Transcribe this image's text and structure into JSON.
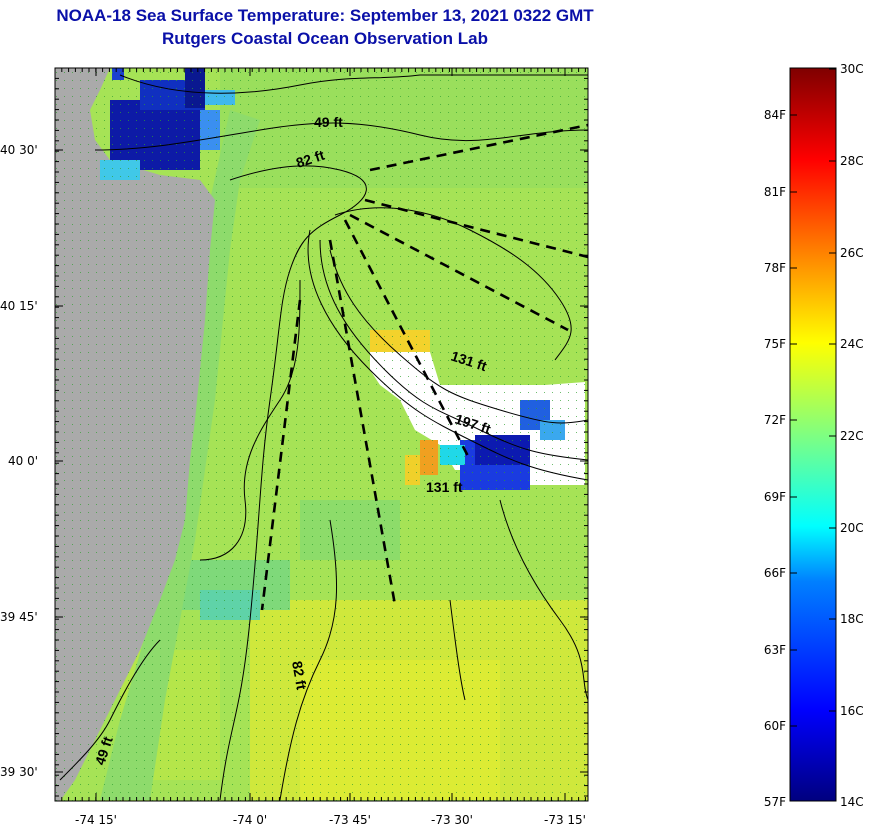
{
  "title": {
    "line1": "NOAA-18 Sea Surface Temperature:  September 13, 2021 0322 GMT",
    "line2": "Rutgers Coastal Ocean Observation Lab"
  },
  "map": {
    "lon_ticks": [
      "-74 15'",
      "-74 0'",
      "-73 45'",
      "-73 30'",
      "-73 15'"
    ],
    "lat_ticks": [
      "40 30'",
      "40 15'",
      "40 0'",
      "39 45'",
      "39 30'"
    ],
    "contour_labels": [
      "49 ft",
      "82 ft",
      "131 ft",
      "197 ft",
      "131 ft",
      "82 ft",
      "49 ft"
    ],
    "colors": {
      "land": "#aaaaaa",
      "cloud": "#ffffff",
      "sst_base": "#a6e356",
      "cold": "#0a1aa0",
      "warm": "#f0c828"
    }
  },
  "colorbar": {
    "fahrenheit": [
      "84F",
      "81F",
      "78F",
      "75F",
      "72F",
      "69F",
      "66F",
      "63F",
      "60F",
      "57F"
    ],
    "celsius": [
      "30C",
      "28C",
      "26C",
      "24C",
      "22C",
      "20C",
      "18C",
      "16C",
      "14C"
    ],
    "range_c": [
      14,
      30
    ],
    "colors": [
      "#00007f",
      "#0000ff",
      "#0080ff",
      "#00ffff",
      "#80ff80",
      "#ffff00",
      "#ff8000",
      "#ff0000",
      "#7f0000"
    ]
  }
}
